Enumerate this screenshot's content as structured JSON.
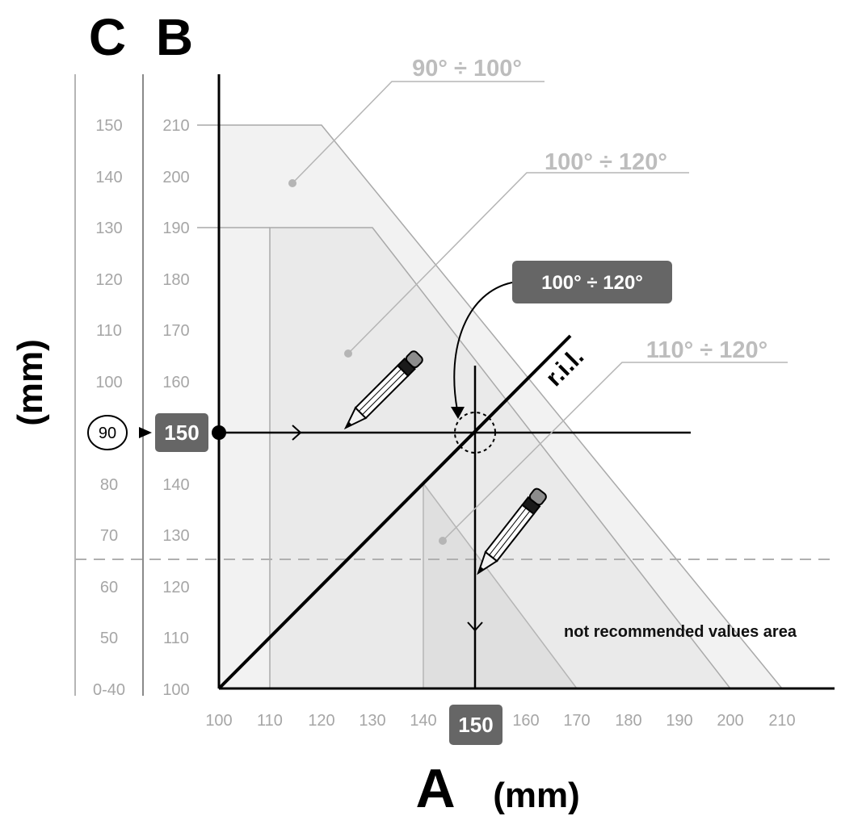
{
  "axes": {
    "c_letter": "C",
    "b_letter": "B",
    "a_letter": "A",
    "left_unit": "(mm)",
    "bottom_unit": "(mm)",
    "c_ticks": [
      "150",
      "140",
      "130",
      "120",
      "110",
      "100",
      "80",
      "70",
      "60",
      "50",
      "0-40"
    ],
    "b_ticks": [
      "210",
      "200",
      "190",
      "180",
      "170",
      "160",
      "140",
      "130",
      "120",
      "110",
      "100"
    ],
    "a_ticks": [
      "100",
      "110",
      "120",
      "130",
      "140",
      "160",
      "170",
      "180",
      "190",
      "200",
      "210"
    ]
  },
  "zones": {
    "zone1_label": "90° ÷ 100°",
    "zone2_label": "100° ÷ 120°",
    "zone3_label": "110° ÷ 120°"
  },
  "example": {
    "c_value": "90",
    "b_value": "150",
    "a_value": "150",
    "result_label": "100° ÷ 120°"
  },
  "reference_line_label": "r.i.l.",
  "not_recommended_label": "not recommended values area"
}
